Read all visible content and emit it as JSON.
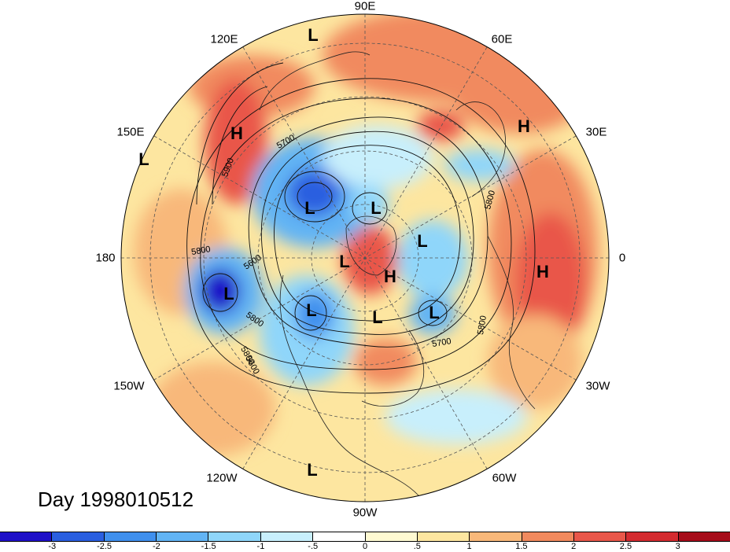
{
  "title": "Day 1998010512",
  "longitude_labels": {
    "n": "90E",
    "nne": "60E",
    "ene": "30E",
    "e": "0",
    "ese": "30W",
    "sse": "60W",
    "s": "90W",
    "ssw": "120W",
    "wsw": "150W",
    "w": "180",
    "wnw": "150E",
    "nnw": "120E"
  },
  "pressure_centers": [
    {
      "type": "L",
      "region": "top"
    },
    {
      "type": "H",
      "region": "west-pacific"
    },
    {
      "type": "H",
      "region": "asia-east"
    },
    {
      "type": "L",
      "region": "far-west"
    },
    {
      "type": "L",
      "region": "siberia"
    },
    {
      "type": "L",
      "region": "arctic-north"
    },
    {
      "type": "L",
      "region": "arctic-center"
    },
    {
      "type": "L",
      "region": "arctic-east"
    },
    {
      "type": "H",
      "region": "greenland"
    },
    {
      "type": "H",
      "region": "africa"
    },
    {
      "type": "L",
      "region": "gulf-of-alaska"
    },
    {
      "type": "L",
      "region": "hudson"
    },
    {
      "type": "L",
      "region": "labrador"
    },
    {
      "type": "L",
      "region": "north-atlantic"
    },
    {
      "type": "L",
      "region": "pacific-south"
    }
  ],
  "contour_labels": [
    "5700",
    "5900",
    "5800",
    "5600",
    "5800",
    "5600",
    "5800",
    "5700",
    "5800",
    "5800"
  ],
  "colorbar": {
    "colors": [
      "#1f10c8",
      "#2a5fe0",
      "#4090ee",
      "#62b4f4",
      "#8fd6fa",
      "#c8effc",
      "#ffffff",
      "#fffad2",
      "#fde6a0",
      "#f8b87a",
      "#f18a5e",
      "#e9574a",
      "#d42b30",
      "#a60c1a"
    ],
    "ticks": [
      "-3",
      "-2.5",
      "-2",
      "-1.5",
      "-1",
      "-.5",
      "0",
      ".5",
      "1",
      "1.5",
      "2",
      "2.5",
      "3"
    ]
  }
}
